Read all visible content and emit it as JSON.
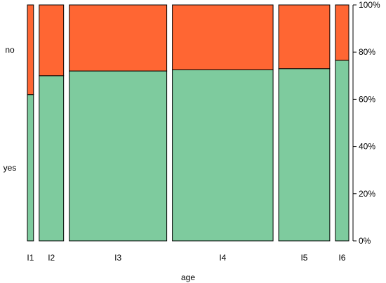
{
  "chart_data": {
    "type": "bar",
    "subtype": "spineplot",
    "xlabel": "age",
    "ylabel": "",
    "categories": [
      "I1",
      "I2",
      "I3",
      "I4",
      "I5",
      "I6"
    ],
    "widths": [
      0.029,
      0.115,
      0.458,
      0.473,
      0.24,
      0.063
    ],
    "levels": [
      "yes",
      "no"
    ],
    "series": [
      {
        "name": "yes",
        "color": "#7ecb9e",
        "values": [
          0.62,
          0.7,
          0.72,
          0.725,
          0.73,
          0.765
        ]
      },
      {
        "name": "no",
        "color": "#ff6633",
        "values": [
          0.38,
          0.3,
          0.28,
          0.275,
          0.27,
          0.235
        ]
      }
    ],
    "yaxis": {
      "side": "right",
      "ticks": [
        "0%",
        "20%",
        "40%",
        "60%",
        "80%",
        "100%"
      ],
      "ylim": [
        0,
        1
      ]
    },
    "grid": false,
    "legend": "none"
  }
}
